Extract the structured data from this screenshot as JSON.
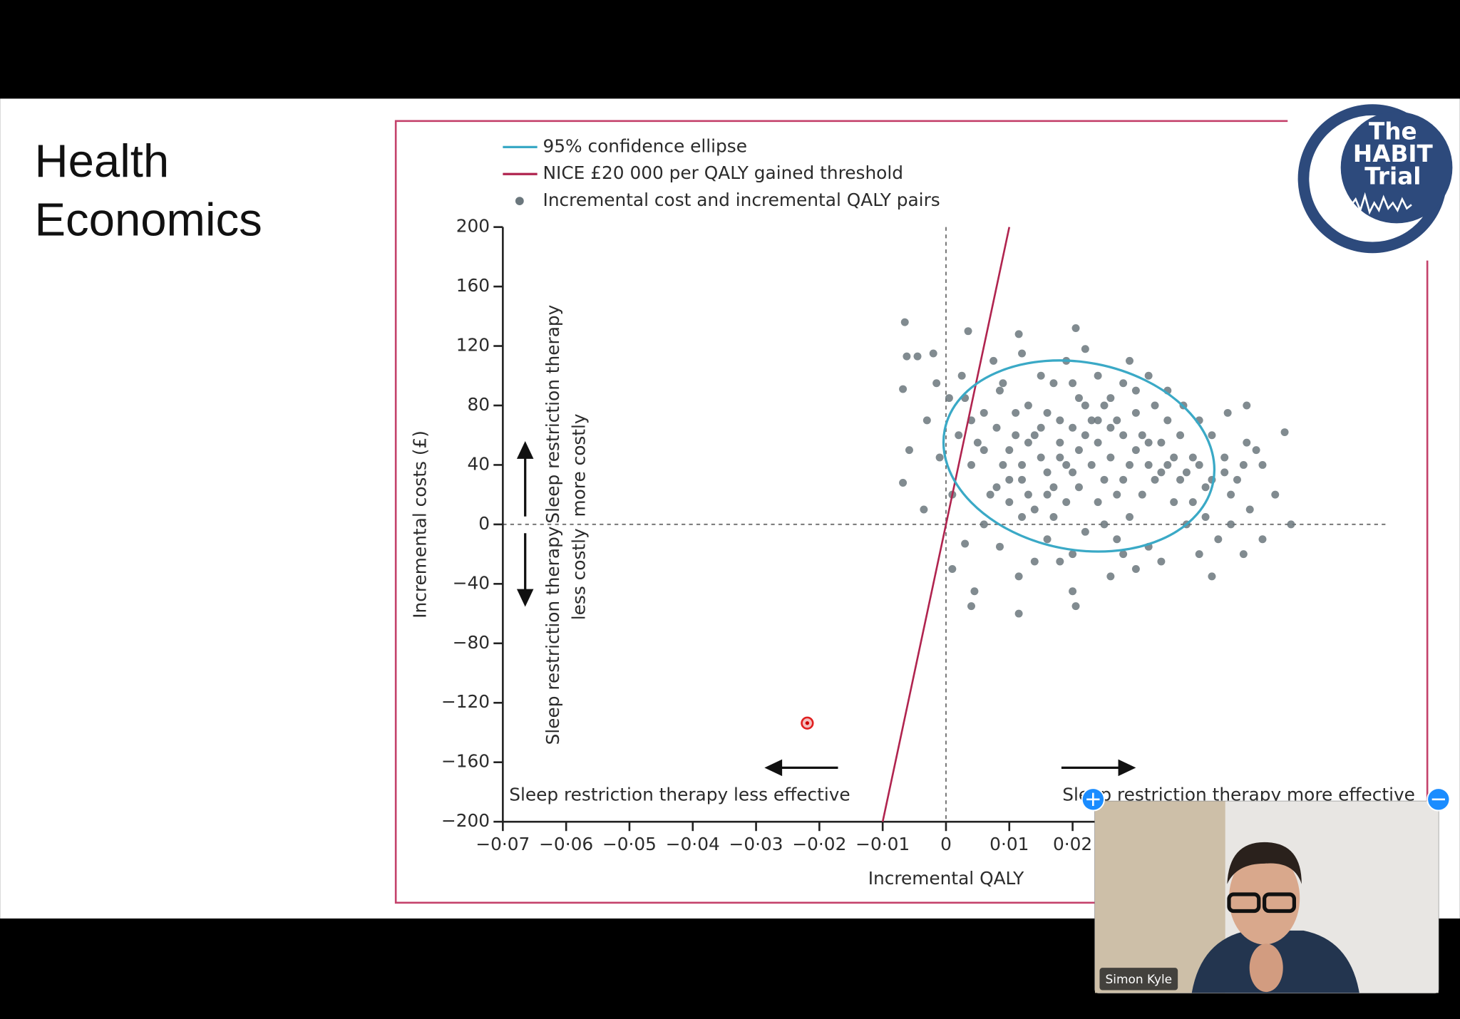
{
  "slide": {
    "title": [
      "Health",
      "Economics"
    ]
  },
  "logo": {
    "lines": [
      "The",
      "HABIT",
      "Trial"
    ]
  },
  "video": {
    "participant": "Simon Kyle"
  },
  "chart_data": {
    "type": "scatter",
    "x_label": "Incremental QALY",
    "y_label": "Incremental costs (£)",
    "xlim": [
      -0.07,
      0.07
    ],
    "ylim": [
      -200,
      200
    ],
    "xticks": [
      {
        "value": -0.07,
        "label": "−0·07"
      },
      {
        "value": -0.06,
        "label": "−0·06"
      },
      {
        "value": -0.05,
        "label": "−0·05"
      },
      {
        "value": -0.04,
        "label": "−0·04"
      },
      {
        "value": -0.03,
        "label": "−0·03"
      },
      {
        "value": -0.02,
        "label": "−0·02"
      },
      {
        "value": -0.01,
        "label": "−0·01"
      },
      0,
      {
        "value": 0.01,
        "label": "0·01"
      },
      {
        "value": 0.02,
        "label": "0·02"
      }
    ],
    "yticks": [
      200,
      160,
      120,
      80,
      40,
      0,
      {
        "value": -40,
        "label": "−40"
      },
      {
        "value": -80,
        "label": "−80"
      },
      {
        "value": -120,
        "label": "−120"
      },
      {
        "value": -160,
        "label": "−160"
      },
      {
        "value": -200,
        "label": "−200"
      }
    ],
    "annotations": {
      "more_costly": [
        "Sleep restriction therapy",
        "more costly"
      ],
      "less_costly": [
        "Sleep restriction therapy",
        "less costly"
      ],
      "less_effective": "Sleep restriction therapy less effective",
      "more_effective": "Sleep restriction therapy more effective"
    },
    "series": [
      {
        "name": "95% confidence ellipse",
        "type": "ellipse",
        "color": "#3aa9c6",
        "cx": 0.021,
        "cy": 46,
        "rx": 0.0216,
        "ry": 63,
        "rotation": 11
      },
      {
        "name": "NICE £20 000 per QALY gained threshold",
        "type": "line",
        "color": "#b0244f",
        "x": [
          -0.01,
          0.01
        ],
        "values": [
          -200,
          200
        ]
      },
      {
        "name": "Incremental cost and incremental QALY pairs",
        "type": "scatter",
        "color": "#6b777d",
        "x": [
          -0.0065,
          -0.0062,
          -0.0045,
          -0.002,
          -0.0068,
          -0.0068,
          -0.0035,
          -0.0058,
          -0.003,
          -0.0015,
          0.0035,
          0.0025,
          0.0005,
          0.002,
          0.004,
          0.001,
          -0.001,
          0.003,
          0.001,
          0.0045,
          0.004,
          0.0115,
          0.0115,
          0.0085,
          0.006,
          0.007,
          0.009,
          0.011,
          0.013,
          0.015,
          0.0115,
          0.012,
          0.0075,
          0.0085,
          0.006,
          0.005,
          0.008,
          0.01,
          0.012,
          0.014,
          0.016,
          0.018,
          0.02,
          0.022,
          0.024,
          0.02,
          0.018,
          0.016,
          0.017,
          0.019,
          0.0205,
          0.022,
          0.024,
          0.026,
          0.023,
          0.021,
          0.019,
          0.017,
          0.015,
          0.013,
          0.011,
          0.009,
          0.01,
          0.012,
          0.014,
          0.02,
          0.026,
          0.0205,
          0.03,
          0.032,
          0.034,
          0.042,
          0.04,
          0.038,
          0.036,
          0.034,
          0.032,
          0.03,
          0.028,
          0.029,
          0.032,
          0.035,
          0.0375,
          0.04,
          0.042,
          0.044,
          0.046,
          0.048,
          0.045,
          0.043,
          0.047,
          0.05,
          0.0545,
          0.052,
          0.05,
          0.0475,
          0.0445,
          0.0475,
          0.0535,
          0.049,
          0.047,
          0.045,
          0.041,
          0.039,
          0.037,
          0.035,
          0.033,
          0.031,
          0.029,
          0.027,
          0.025,
          0.027,
          0.029,
          0.031,
          0.033,
          0.035,
          0.037,
          0.039,
          0.041,
          0.025,
          0.023,
          0.021,
          0.019,
          0.017,
          0.022,
          0.024,
          0.026,
          0.028,
          0.03,
          0.027,
          0.025,
          0.021,
          0.018,
          0.014,
          0.012,
          0.01,
          0.008,
          0.006,
          0.004,
          0.003,
          0.016,
          0.018,
          0.02,
          0.022,
          0.026,
          0.028,
          0.032,
          0.034,
          0.036,
          0.038,
          0.04,
          0.042,
          0.044,
          0.024,
          0.02,
          0.016,
          0.013,
          0.03,
          0.015,
          0.028
        ],
        "values": [
          136,
          113,
          113,
          115,
          91,
          28,
          10,
          50,
          70,
          95,
          130,
          100,
          85,
          60,
          40,
          20,
          45,
          -13,
          -30,
          -45,
          -55,
          -60,
          -35,
          -15,
          0,
          20,
          40,
          60,
          80,
          100,
          128,
          115,
          110,
          90,
          75,
          55,
          65,
          50,
          30,
          10,
          -10,
          -25,
          -20,
          -5,
          15,
          35,
          55,
          75,
          95,
          110,
          132,
          118,
          100,
          85,
          70,
          50,
          40,
          25,
          45,
          55,
          75,
          95,
          15,
          5,
          -25,
          -45,
          -35,
          -55,
          -30,
          -15,
          -25,
          -35,
          -20,
          0,
          15,
          35,
          55,
          75,
          95,
          110,
          100,
          90,
          80,
          70,
          60,
          45,
          30,
          10,
          0,
          -10,
          -20,
          -10,
          0,
          20,
          40,
          55,
          75,
          80,
          62,
          50,
          40,
          20,
          25,
          45,
          60,
          70,
          80,
          60,
          40,
          20,
          0,
          -10,
          5,
          20,
          30,
          40,
          30,
          15,
          5,
          30,
          40,
          25,
          15,
          5,
          60,
          55,
          45,
          60,
          50,
          70,
          80,
          85,
          70,
          60,
          40,
          30,
          25,
          50,
          70,
          85,
          35,
          45,
          65,
          80,
          65,
          30,
          40,
          55,
          45,
          35,
          40,
          30,
          35,
          70,
          95,
          20,
          20,
          90,
          65,
          -20
        ]
      }
    ]
  }
}
